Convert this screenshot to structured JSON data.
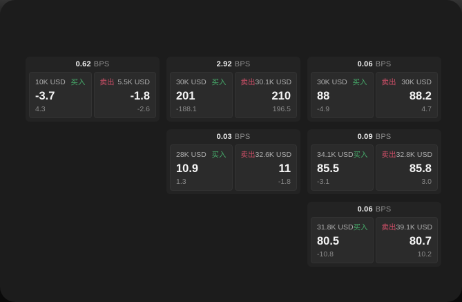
{
  "labels": {
    "buy": "买入",
    "sell": "卖出",
    "bps_unit": "BPS"
  },
  "colors": {
    "window_background": "#1c1c1c",
    "card_background": "#232323",
    "panel_background": "#2b2b2b",
    "buy_accent": "#46a96a",
    "sell_accent": "#cf4f68",
    "primary_text": "#f4f4f4",
    "muted_text": "#8a8a8a"
  },
  "cards": [
    {
      "bps": "0.62",
      "buy": {
        "volume": "10K USD",
        "price": "-3.7",
        "change": "4.3"
      },
      "sell": {
        "volume": "5.5K USD",
        "price": "-1.8",
        "change": "-2.6"
      }
    },
    {
      "bps": "2.92",
      "buy": {
        "volume": "30K USD",
        "price": "201",
        "change": "-188.1"
      },
      "sell": {
        "volume": "30.1K USD",
        "price": "210",
        "change": "196.5"
      }
    },
    {
      "bps": "0.06",
      "buy": {
        "volume": "30K USD",
        "price": "88",
        "change": "-4.9"
      },
      "sell": {
        "volume": "30K USD",
        "price": "88.2",
        "change": "4.7"
      }
    },
    {
      "bps": "0.03",
      "buy": {
        "volume": "28K USD",
        "price": "10.9",
        "change": "1.3"
      },
      "sell": {
        "volume": "32.6K USD",
        "price": "11",
        "change": "-1.8"
      }
    },
    {
      "bps": "0.09",
      "buy": {
        "volume": "34.1K USD",
        "price": "85.5",
        "change": "-3.1"
      },
      "sell": {
        "volume": "32.8K USD",
        "price": "85.8",
        "change": "3.0"
      }
    },
    {
      "bps": "0.06",
      "buy": {
        "volume": "31.8K USD",
        "price": "80.5",
        "change": "-10.8"
      },
      "sell": {
        "volume": "39.1K USD",
        "price": "80.7",
        "change": "10.2"
      }
    }
  ]
}
